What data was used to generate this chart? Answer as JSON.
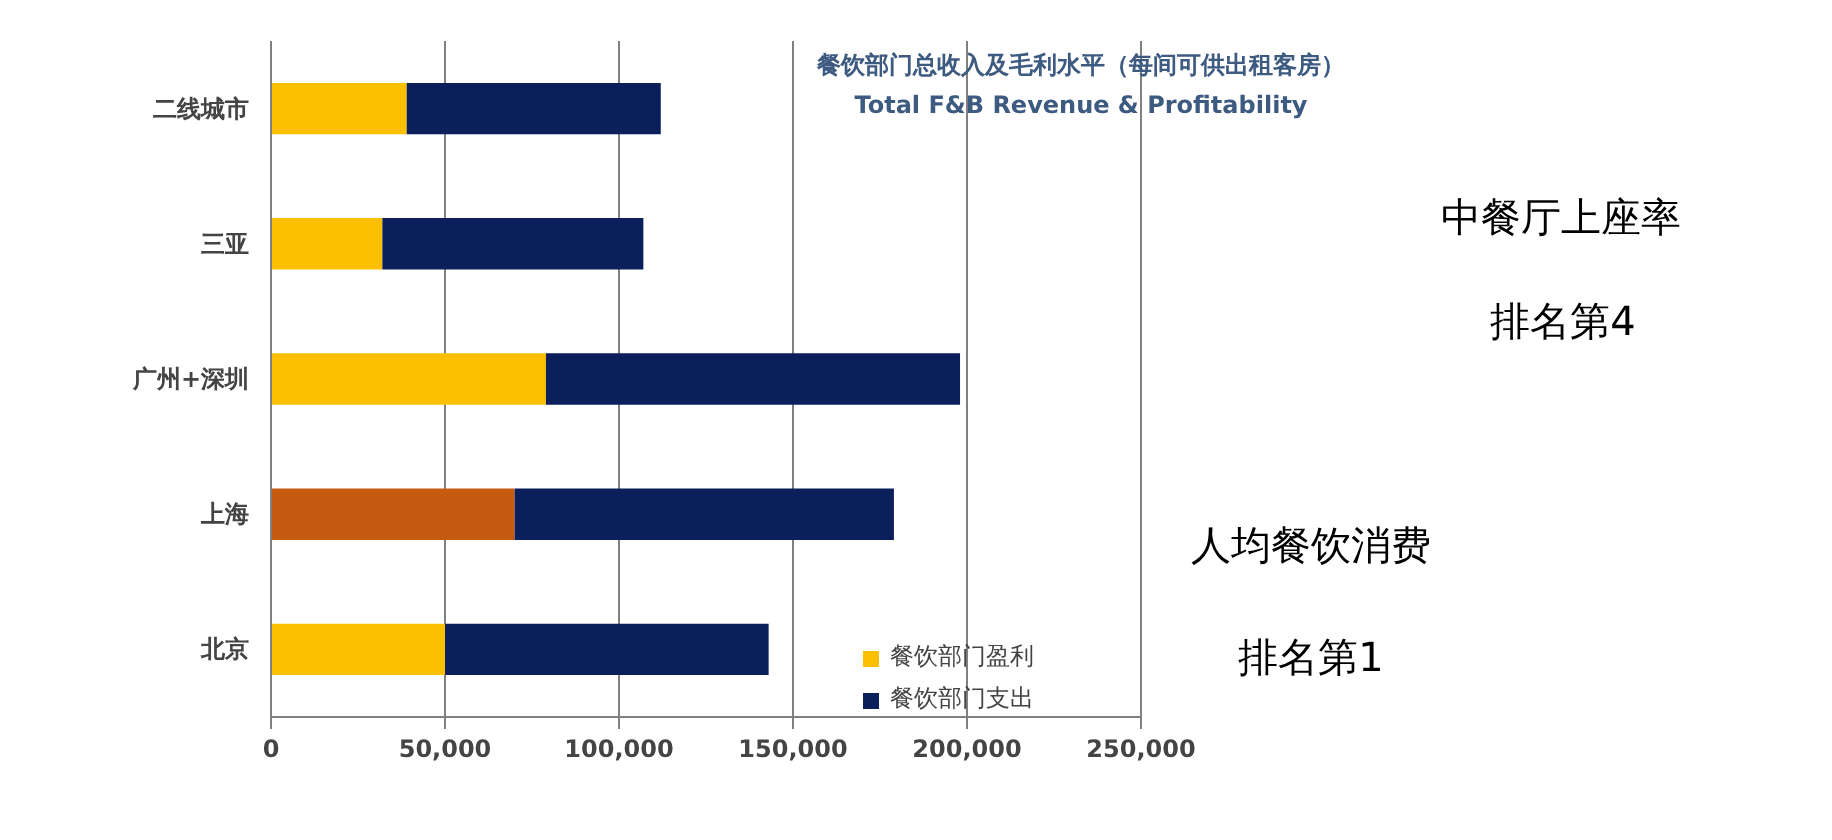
{
  "chart_data": {
    "type": "bar",
    "orientation": "horizontal",
    "stacked": true,
    "title": "餐饮部门总收入及毛利水平（每间可供出租客房）",
    "subtitle": "Total F&B Revenue & Profitability",
    "categories": [
      "二线城市",
      "三亚",
      "广州+深圳",
      "上海",
      "北京"
    ],
    "series": [
      {
        "name": "餐饮部门盈利",
        "color": "#fcc000",
        "colors": [
          "#fcc000",
          "#fcc000",
          "#fcc000",
          "#c55a11",
          "#fcc000"
        ],
        "values": [
          39000,
          32000,
          79000,
          70000,
          50000
        ]
      },
      {
        "name": "餐饮部门支出",
        "color": "#0a1f5c",
        "values": [
          73000,
          75000,
          119000,
          109000,
          93000
        ]
      }
    ],
    "xlim": [
      0,
      250000
    ],
    "xticks": [
      {
        "value": 0,
        "label": "0"
      },
      {
        "value": 50000,
        "label": "50,000"
      },
      {
        "value": 100000,
        "label": "100,000"
      },
      {
        "value": 150000,
        "label": "150,000"
      },
      {
        "value": 200000,
        "label": "200,000"
      },
      {
        "value": 250000,
        "label": "250,000"
      }
    ],
    "grid": "x",
    "legend": "bottom right",
    "annotations": [
      "中餐厅上座率",
      "排名第4",
      "人均餐饮消费",
      "排名第1"
    ]
  }
}
